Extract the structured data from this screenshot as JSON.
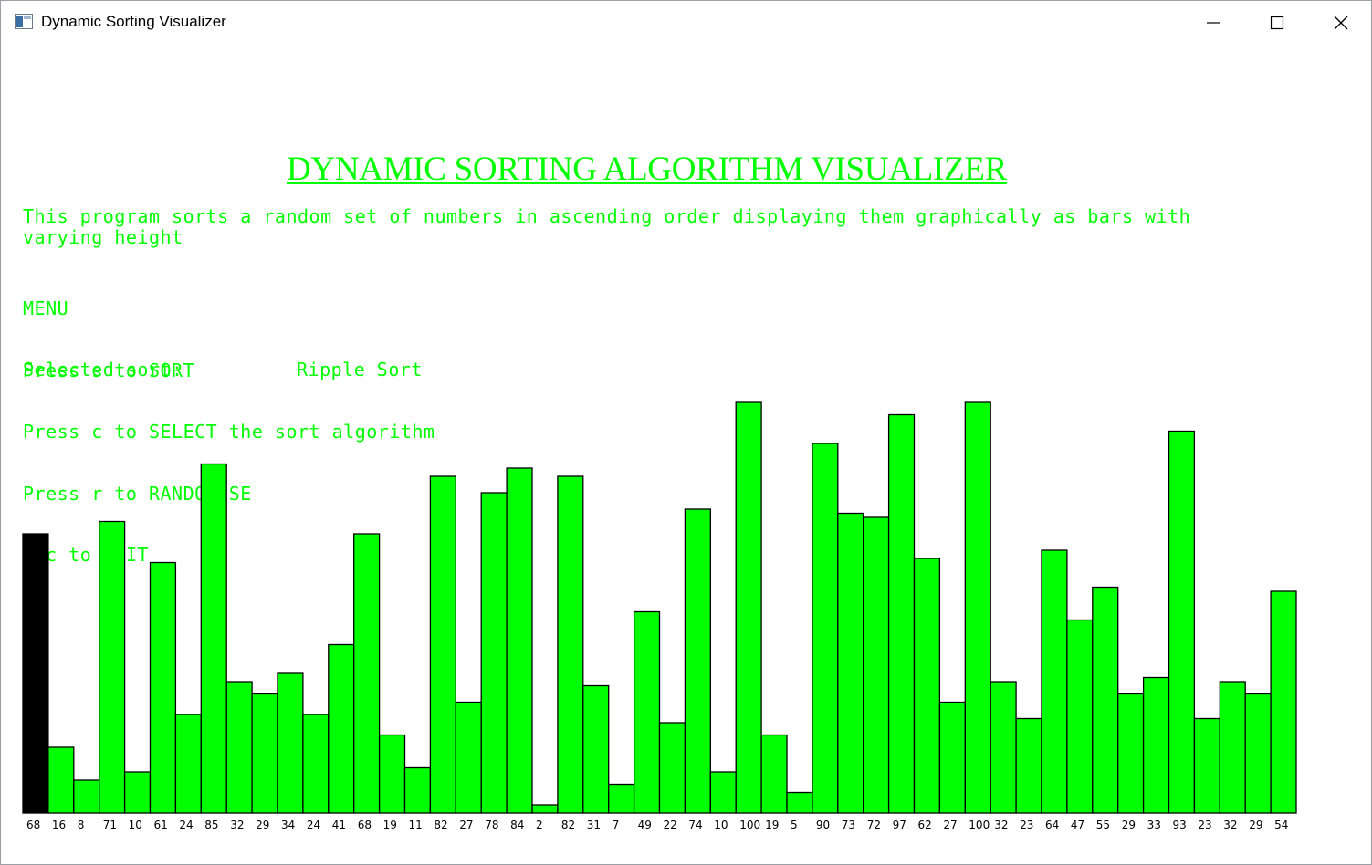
{
  "window": {
    "title": "Dynamic Sorting Visualizer",
    "icons": {
      "app": "app-window-icon",
      "minimize": "minimize-icon",
      "maximize": "maximize-icon",
      "close": "close-icon"
    }
  },
  "heading": "DYNAMIC SORTING ALGORITHM VISUALIZER",
  "description": "This program sorts a random set of numbers in ascending order displaying them graphically as bars with varying height",
  "menu": {
    "title": "MENU",
    "items": [
      "Press s to SORT",
      "Press c to SELECT the sort algorithm",
      "Press r to RANDOMISE",
      "Esc to QUIT"
    ],
    "selected_label": "Selected sort:",
    "selected_value": "Ripple Sort"
  },
  "colors": {
    "bar": "#00ff00",
    "active_bar": "#000000",
    "text": "#00ff00",
    "outline": "#000000"
  },
  "chart_data": {
    "type": "bar",
    "highlighted_index": 0,
    "values": [
      68,
      16,
      8,
      71,
      10,
      61,
      24,
      85,
      32,
      29,
      34,
      24,
      41,
      68,
      19,
      11,
      82,
      27,
      78,
      84,
      2,
      82,
      31,
      7,
      49,
      22,
      74,
      10,
      100,
      19,
      5,
      90,
      73,
      72,
      97,
      62,
      27,
      100,
      32,
      23,
      64,
      47,
      55,
      29,
      33,
      93,
      23,
      32,
      29,
      54
    ],
    "ylim": [
      0,
      100
    ]
  }
}
